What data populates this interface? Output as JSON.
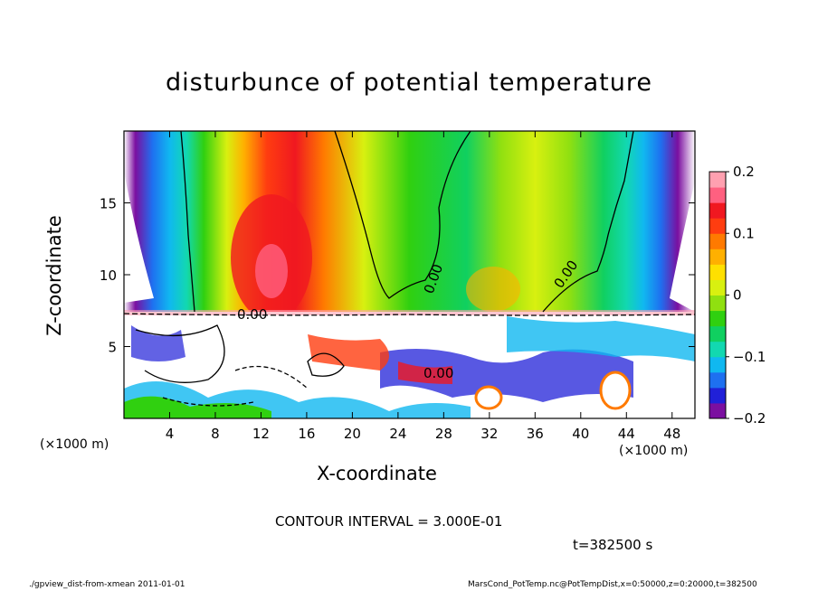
{
  "chart_data": {
    "type": "heatmap",
    "title": "disturbunce of potential temperature",
    "xlabel": "X-coordinate",
    "ylabel": "Z-coordinate",
    "x_unit_label_left": "(×1000 m)",
    "x_unit_label_right": "(×1000 m)",
    "xlim": [
      0,
      50
    ],
    "ylim": [
      0,
      20
    ],
    "x_ticks": [
      4,
      8,
      12,
      16,
      20,
      24,
      28,
      32,
      36,
      40,
      44,
      48
    ],
    "y_ticks": [
      5,
      10,
      15
    ],
    "colorbar": {
      "range": [
        -0.2,
        0.2
      ],
      "tick_values": [
        -0.2,
        -0.1,
        0,
        0.1,
        0.2
      ],
      "tick_labels": [
        "−0.2",
        "−0.1",
        "0",
        "0.1",
        "0.2"
      ],
      "colors": [
        "#7b0fa0",
        "#2020d8",
        "#1e70f0",
        "#10b8f0",
        "#12d8b0",
        "#10d060",
        "#30d010",
        "#90e010",
        "#d8f010",
        "#ffe000",
        "#ffb000",
        "#ff7a00",
        "#ff3d10",
        "#f01820",
        "#ff6080",
        "#ffa0b0"
      ]
    },
    "contour_label": "0.00",
    "contour_interval_text": "CONTOUR INTERVAL = 3.000E-01",
    "time_text": "t=382500 s"
  },
  "footer": {
    "left": "./gpview_dist-from-xmean  2011-01-01",
    "right": "MarsCond_PotTemp.nc@PotTempDist,x=0:50000,z=0:20000,t=382500"
  }
}
